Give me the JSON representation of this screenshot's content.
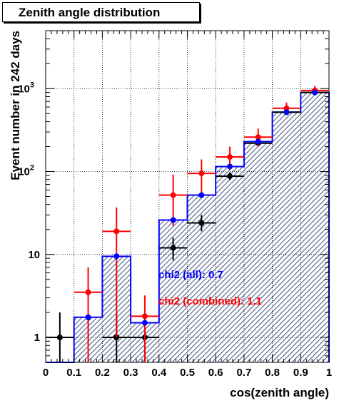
{
  "chart_data": {
    "type": "histogram",
    "title": "Zenith angle distribution",
    "xlabel": "cos(zenith angle)",
    "ylabel": "Event number in 242 days",
    "xlim": [
      0,
      1
    ],
    "ylim": [
      0.5,
      5000
    ],
    "yscale": "log",
    "grid": true,
    "x_ticks": [
      "0",
      "0.1",
      "0.2",
      "0.3",
      "0.4",
      "0.5",
      "0.6",
      "0.7",
      "0.8",
      "0.9",
      "1"
    ],
    "y_ticks": [
      {
        "value": 1,
        "label": "1"
      },
      {
        "value": 10,
        "label": "10"
      },
      {
        "value": 100,
        "label": "10^2"
      },
      {
        "value": 1000,
        "label": "10^3"
      }
    ],
    "bin_edges": [
      0,
      0.1,
      0.2,
      0.3,
      0.4,
      0.5,
      0.6,
      0.7,
      0.8,
      0.9,
      1.0
    ],
    "expected_histogram": {
      "color": "#0000ff",
      "hatched": true,
      "values": [
        0.5,
        1.75,
        9.5,
        1.5,
        26,
        52,
        115,
        230,
        520,
        900
      ]
    },
    "series": [
      {
        "color": "#000000",
        "x": [
          0.05,
          0.15,
          0.25,
          0.35,
          0.45,
          0.55,
          0.65,
          0.75,
          0.85,
          0.95
        ],
        "y": [
          1,
          0,
          1,
          1,
          12,
          24,
          88,
          220,
          520,
          900
        ],
        "yerr_lo": [
          0.5,
          0,
          0.5,
          0.5,
          3.5,
          5,
          9,
          15,
          23,
          30
        ],
        "yerr_hi": [
          1,
          0,
          1,
          1,
          4,
          6,
          10,
          16,
          24,
          31
        ]
      },
      {
        "color": "#ff0000",
        "x": [
          0.15,
          0.25,
          0.35,
          0.45,
          0.55,
          0.65,
          0.75,
          0.85,
          0.95
        ],
        "y": [
          3.5,
          19,
          1.8,
          52,
          95,
          150,
          260,
          580,
          950
        ],
        "yerr_lo": [
          3.0,
          18,
          1.3,
          30,
          40,
          45,
          60,
          90,
          120
        ],
        "yerr_hi": [
          3.5,
          18,
          1.4,
          40,
          45,
          50,
          70,
          100,
          120
        ]
      },
      {
        "color": "#0000ff",
        "x": [
          0.15,
          0.25,
          0.35,
          0.45,
          0.55,
          0.65,
          0.75,
          0.85,
          0.95
        ],
        "y": [
          1.75,
          9.5,
          1.5,
          26,
          52,
          115,
          230,
          520,
          900
        ],
        "yerr_lo": [
          0,
          0,
          0,
          0,
          0,
          0,
          0,
          0,
          0
        ],
        "yerr_hi": [
          0,
          0,
          0,
          0,
          0,
          0,
          0,
          0,
          0
        ]
      }
    ],
    "annotations": [
      {
        "text": "chi2 (all): 0.7",
        "color": "#0000ff"
      },
      {
        "text": "chi2 (combined): 1.1",
        "color": "#ff0000"
      }
    ]
  }
}
